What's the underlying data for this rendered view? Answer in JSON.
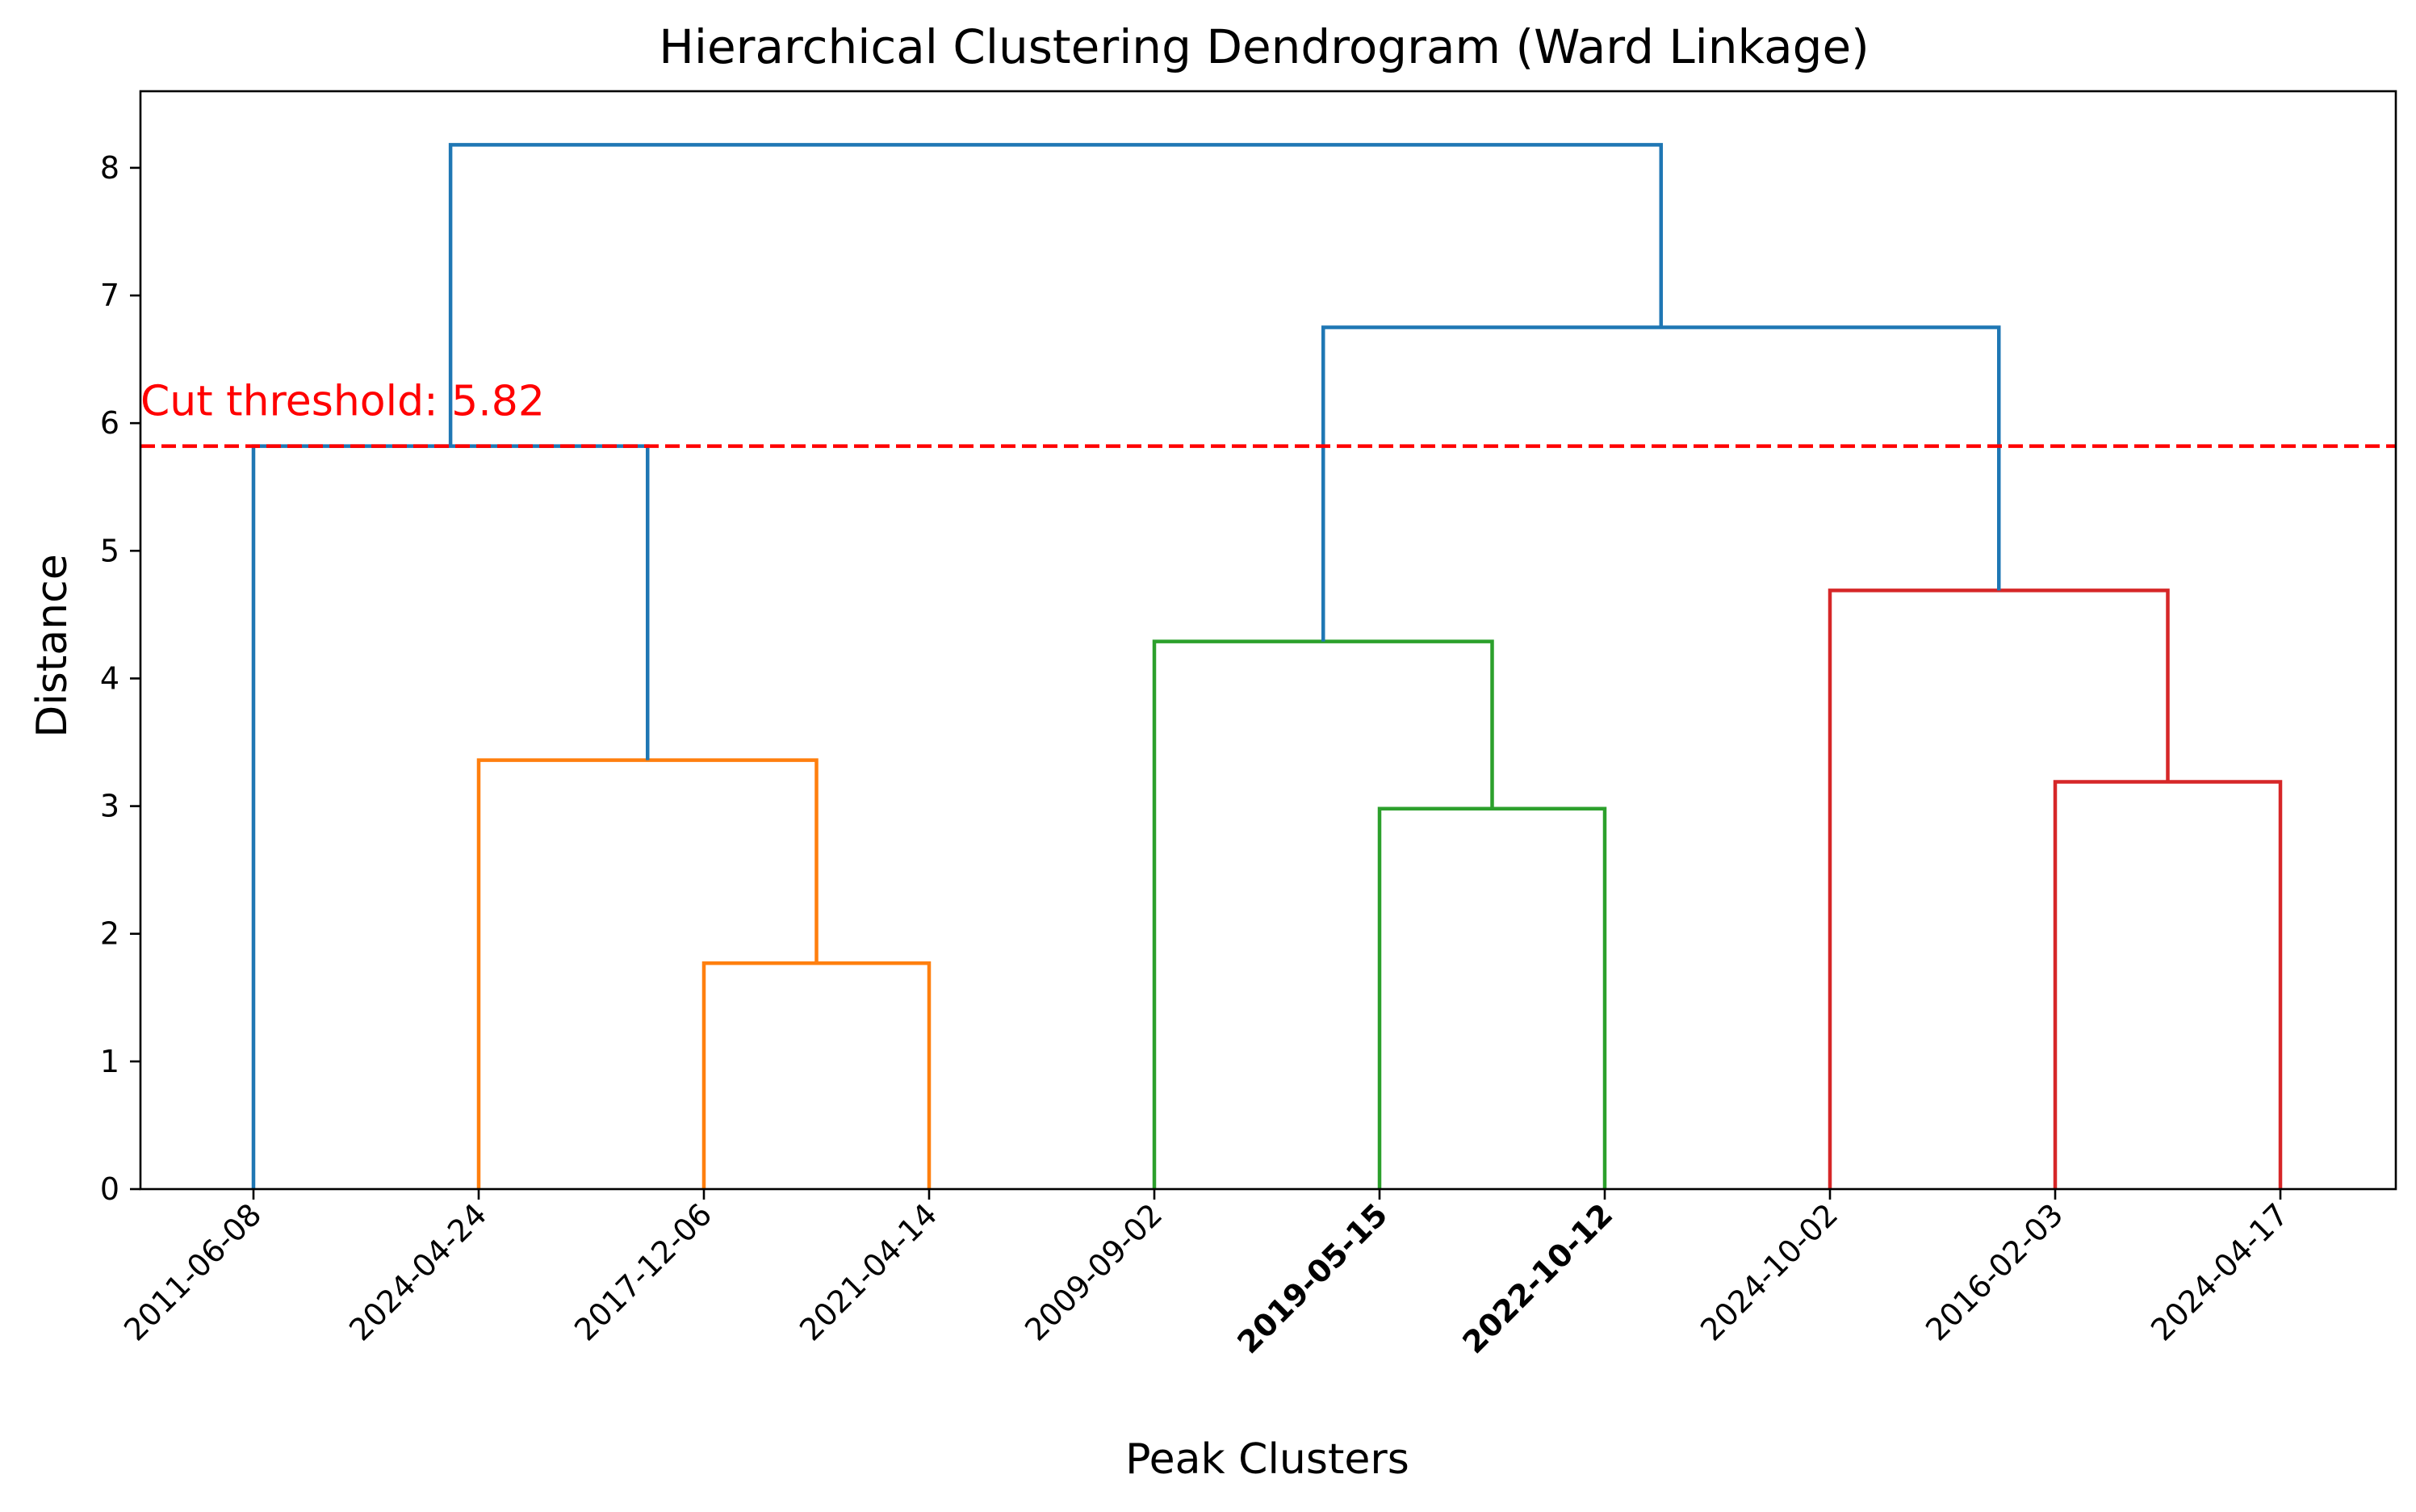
{
  "chart_data": {
    "type": "dendrogram",
    "title": "Hierarchical Clustering Dendrogram (Ward Linkage)",
    "xlabel": "Peak Clusters",
    "ylabel": "Distance",
    "ylim": [
      0,
      8.6
    ],
    "yticks": [
      0,
      1,
      2,
      3,
      4,
      5,
      6,
      7,
      8
    ],
    "leaves": [
      {
        "label": "2011-06-08",
        "bold": false
      },
      {
        "label": "2024-04-24",
        "bold": false
      },
      {
        "label": "2017-12-06",
        "bold": false
      },
      {
        "label": "2021-04-14",
        "bold": false
      },
      {
        "label": "2009-09-02",
        "bold": false
      },
      {
        "label": "2019-05-15",
        "bold": true
      },
      {
        "label": "2022-10-12",
        "bold": true
      },
      {
        "label": "2024-10-02",
        "bold": false
      },
      {
        "label": "2016-02-03",
        "bold": false
      },
      {
        "label": "2024-04-17",
        "bold": false
      }
    ],
    "merges": [
      {
        "left": "2017-12-06",
        "right": "2021-04-14",
        "height": 1.77,
        "color": "#ff7f0e"
      },
      {
        "left": "2024-04-24",
        "right": "m0",
        "height": 3.36,
        "color": "#ff7f0e"
      },
      {
        "left": "2011-06-08",
        "right": "m1",
        "height": 5.82,
        "color": "#1f77b4"
      },
      {
        "left": "2019-05-15",
        "right": "2022-10-12",
        "height": 2.98,
        "color": "#2ca02c"
      },
      {
        "left": "2009-09-02",
        "right": "m3",
        "height": 4.29,
        "color": "#2ca02c"
      },
      {
        "left": "2016-02-03",
        "right": "2024-04-17",
        "height": 3.19,
        "color": "#d62728"
      },
      {
        "left": "2024-10-02",
        "right": "m5",
        "height": 4.69,
        "color": "#d62728"
      },
      {
        "left": "m4",
        "right": "m6",
        "height": 6.75,
        "color": "#1f77b4"
      },
      {
        "left": "m2",
        "right": "m7",
        "height": 8.18,
        "color": "#1f77b4"
      }
    ],
    "threshold": {
      "value": 5.82,
      "label": "Cut threshold: 5.82",
      "color": "#ff0000",
      "style": "dashed"
    },
    "colors": {
      "cluster_orange": "#ff7f0e",
      "cluster_green": "#2ca02c",
      "cluster_red": "#d62728",
      "above_threshold": "#1f77b4"
    }
  }
}
